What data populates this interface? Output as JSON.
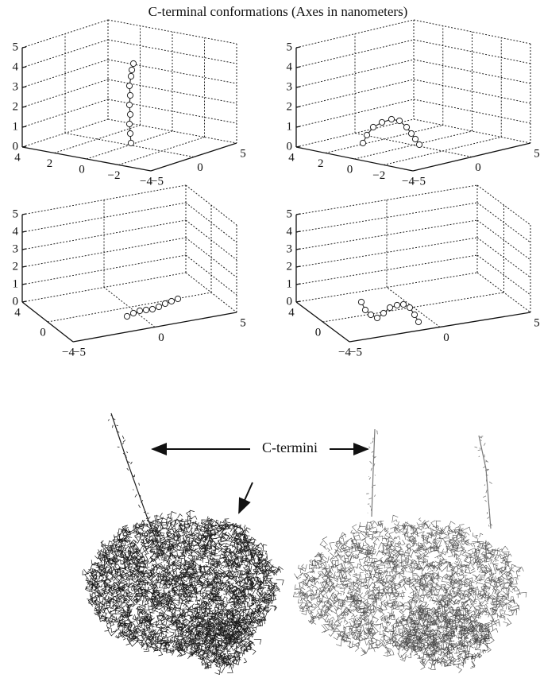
{
  "title": "C-terminal conformations (Axes in nanometers)",
  "panels": [
    {
      "z_ticks": [
        "0",
        "1",
        "2",
        "3",
        "4",
        "5"
      ],
      "y_ticks": [
        "4",
        "2",
        "0",
        "−2",
        "−4"
      ],
      "x_ticks": [
        "−5",
        "0",
        "5"
      ]
    },
    {
      "z_ticks": [
        "0",
        "1",
        "2",
        "3",
        "4",
        "5"
      ],
      "y_ticks": [
        "4",
        "2",
        "0",
        "−2",
        "−4"
      ],
      "x_ticks": [
        "−5",
        "0",
        "5"
      ]
    },
    {
      "z_ticks": [
        "0",
        "1",
        "2",
        "3",
        "4",
        "5"
      ],
      "y_ticks": [
        "4",
        "0",
        "−4"
      ],
      "x_ticks": [
        "−5",
        "0",
        "5"
      ]
    },
    {
      "z_ticks": [
        "0",
        "1",
        "2",
        "3",
        "4",
        "5"
      ],
      "y_ticks": [
        "4",
        "0",
        "−4"
      ],
      "x_ticks": [
        "−5",
        "0",
        "5"
      ]
    }
  ],
  "annotation": "C-termini"
}
